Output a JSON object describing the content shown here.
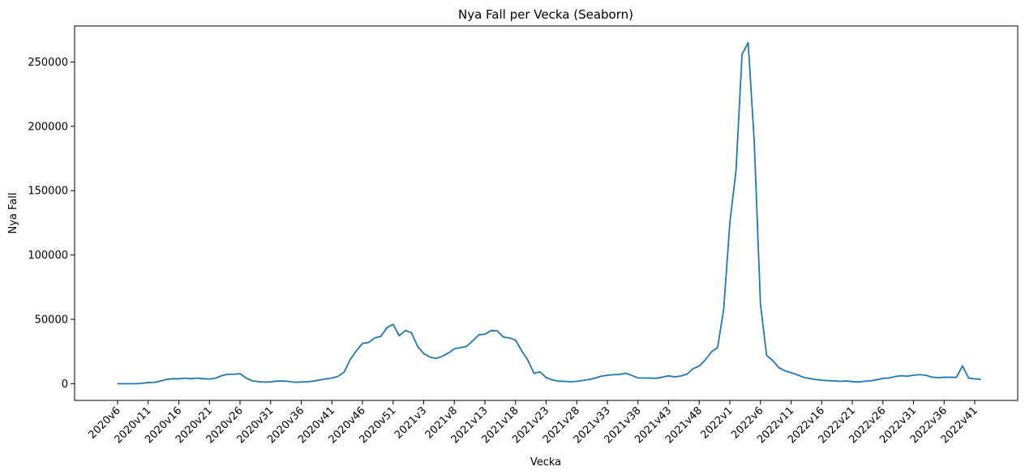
{
  "chart_data": {
    "type": "line",
    "title": "Nya Fall per Vecka (Seaborn)",
    "xlabel": "Vecka",
    "ylabel": "Nya Fall",
    "ylim": [
      -13000,
      278000
    ],
    "yticks": [
      0,
      50000,
      100000,
      150000,
      200000,
      250000
    ],
    "grid": false,
    "legend": "none",
    "line_color": "#1f77b4",
    "x_tick_labels": [
      "2020v6",
      "2020v11",
      "2020v16",
      "2020v21",
      "2020v26",
      "2020v31",
      "2020v36",
      "2020v41",
      "2020v46",
      "2020v51",
      "2021v3",
      "2021v8",
      "2021v13",
      "2021v18",
      "2021v23",
      "2021v28",
      "2021v33",
      "2021v38",
      "2021v43",
      "2021v48",
      "2022v1",
      "2022v6",
      "2022v11",
      "2022v16",
      "2022v21",
      "2022v26",
      "2022v31",
      "2022v36",
      "2022v41"
    ],
    "x_tick_every": 5,
    "series": [
      {
        "values": [
          0,
          0,
          0,
          0,
          300,
          900,
          1000,
          2000,
          3400,
          3800,
          3800,
          4300,
          3900,
          4300,
          3900,
          3600,
          4300,
          6200,
          7400,
          7300,
          7800,
          4400,
          2200,
          1600,
          1200,
          1400,
          2000,
          2100,
          1700,
          1100,
          1300,
          1500,
          2000,
          2900,
          3700,
          4400,
          5700,
          9000,
          18800,
          25600,
          31300,
          32000,
          35600,
          36800,
          43500,
          46200,
          37300,
          41300,
          39700,
          29000,
          23400,
          20700,
          19600,
          21200,
          23700,
          27100,
          28000,
          29000,
          33300,
          38000,
          38500,
          41200,
          41100,
          36300,
          35600,
          33800,
          25600,
          18400,
          8000,
          9200,
          4700,
          3000,
          2000,
          1800,
          1500,
          1800,
          2500,
          3300,
          4300,
          5800,
          6500,
          7000,
          7200,
          8100,
          6400,
          4500,
          4400,
          4300,
          4200,
          5100,
          6100,
          5300,
          6000,
          7400,
          11700,
          13800,
          18500,
          24800,
          28000,
          58000,
          125000,
          165000,
          256000,
          265000,
          187000,
          62000,
          22000,
          18000,
          12500,
          10000,
          8600,
          7000,
          5000,
          4100,
          3300,
          2700,
          2400,
          2200,
          1800,
          2100,
          1600,
          1300,
          1900,
          2200,
          3100,
          4200,
          4400,
          5600,
          6200,
          5800,
          6600,
          7000,
          6500,
          5100,
          4700,
          5000,
          5000,
          4900,
          13800,
          4400,
          3700,
          3400
        ]
      }
    ]
  }
}
